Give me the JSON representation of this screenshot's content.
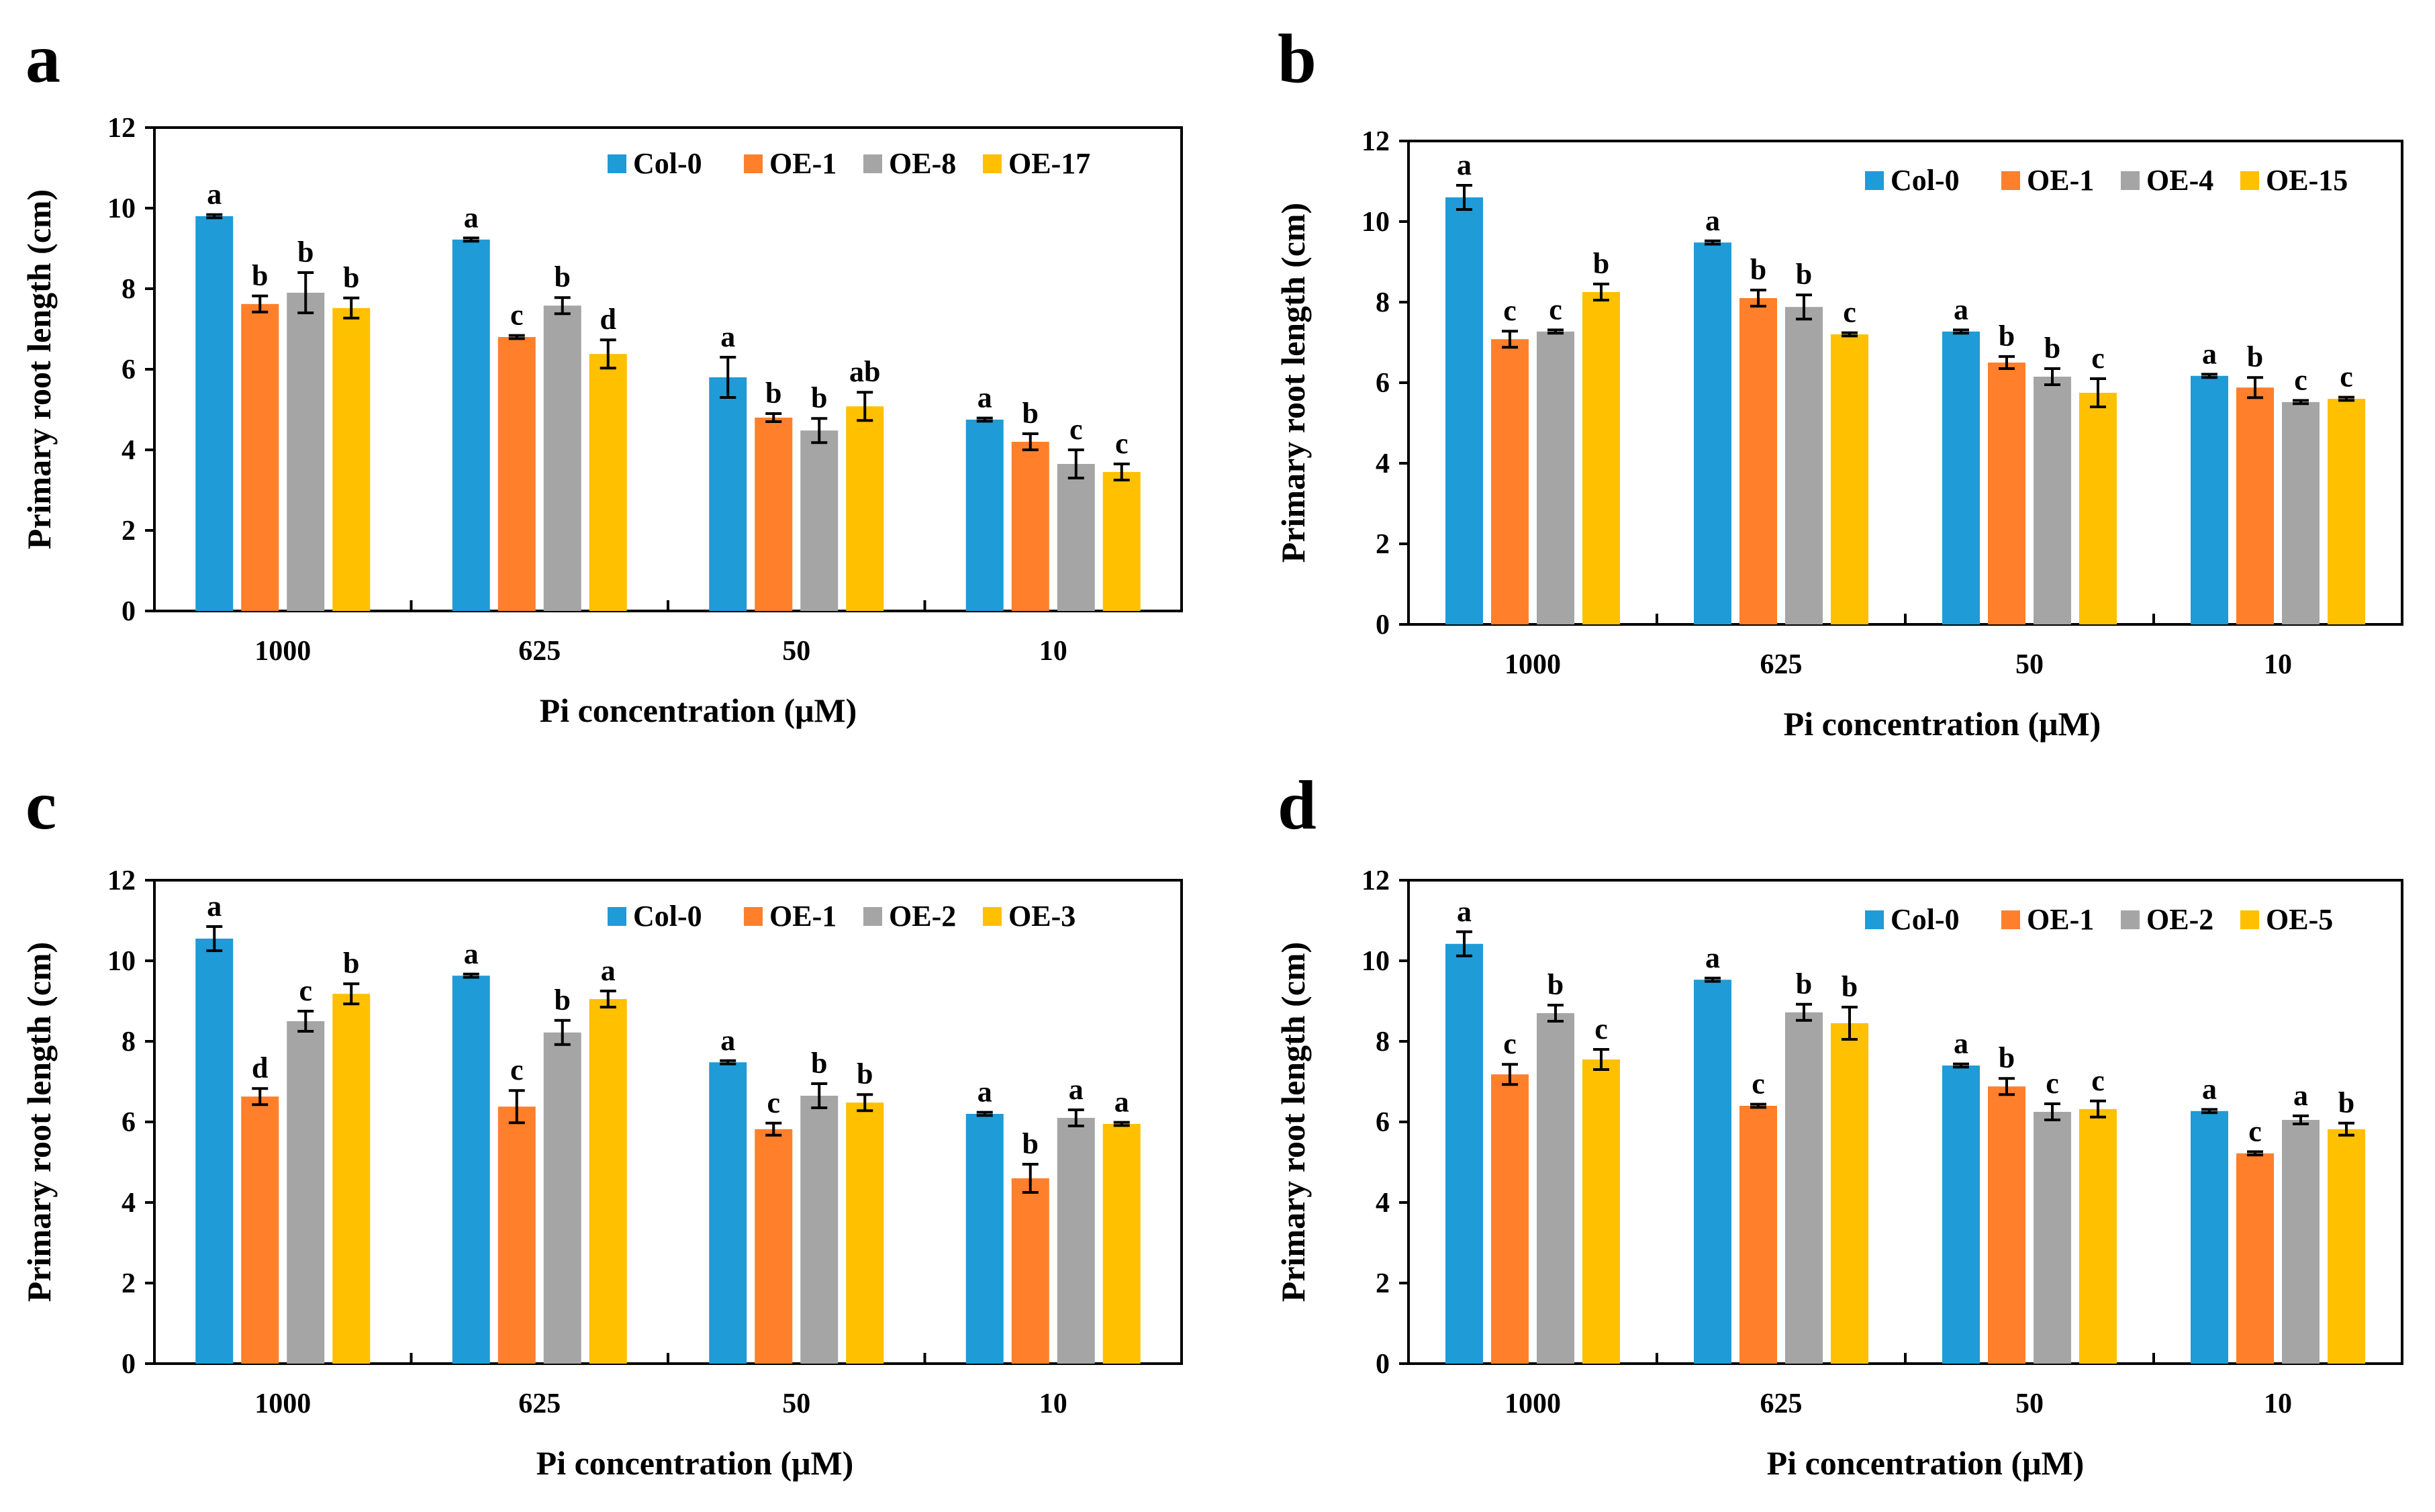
{
  "colors": {
    "series": [
      "#1f9bd7",
      "#ff7f2a",
      "#a5a5a5",
      "#ffc000"
    ],
    "axis": "#000000"
  },
  "chart_data": [
    {
      "panel_label": "a",
      "type": "bar",
      "title": "",
      "xlabel": "Pi concentration (μM)",
      "ylabel": "Primary root length (cm)",
      "ylim": [
        0,
        12
      ],
      "yticks": [
        "0",
        "2",
        "4",
        "6",
        "8",
        "10",
        "12"
      ],
      "categories": [
        "1000",
        "625",
        "50",
        "10"
      ],
      "legend_position": "top-right",
      "series": [
        {
          "name": "Col-0",
          "values": [
            9.8,
            9.22,
            5.8,
            4.75
          ],
          "errors": [
            0.04,
            0.04,
            0.5,
            0.04
          ],
          "letters": [
            "a",
            "a",
            "a",
            "a"
          ]
        },
        {
          "name": "OE-1",
          "values": [
            7.62,
            6.8,
            4.8,
            4.2
          ],
          "errors": [
            0.2,
            0.04,
            0.1,
            0.2
          ],
          "letters": [
            "b",
            "c",
            "b",
            "b"
          ]
        },
        {
          "name": "OE-8",
          "values": [
            7.9,
            7.58,
            4.48,
            3.65
          ],
          "errors": [
            0.5,
            0.2,
            0.3,
            0.35
          ],
          "letters": [
            "b",
            "b",
            "b",
            "c"
          ]
        },
        {
          "name": "OE-17",
          "values": [
            7.52,
            6.38,
            5.08,
            3.45
          ],
          "errors": [
            0.25,
            0.35,
            0.35,
            0.2
          ],
          "letters": [
            "b",
            "d",
            "ab",
            "c"
          ]
        }
      ]
    },
    {
      "panel_label": "b",
      "type": "bar",
      "title": "",
      "xlabel": "Pi concentration (μM)",
      "ylabel": "Primary root length (cm)",
      "ylim": [
        0,
        12
      ],
      "yticks": [
        "0",
        "2",
        "4",
        "6",
        "8",
        "10",
        "12"
      ],
      "categories": [
        "1000",
        "625",
        "50",
        "10"
      ],
      "legend_position": "top-right",
      "series": [
        {
          "name": "Col-0",
          "values": [
            10.6,
            9.48,
            7.27,
            6.17
          ],
          "errors": [
            0.3,
            0.04,
            0.04,
            0.04
          ],
          "letters": [
            "a",
            "a",
            "a",
            "a"
          ]
        },
        {
          "name": "OE-1",
          "values": [
            7.08,
            8.1,
            6.5,
            5.88
          ],
          "errors": [
            0.2,
            0.2,
            0.15,
            0.25
          ],
          "letters": [
            "c",
            "b",
            "b",
            "b"
          ]
        },
        {
          "name": "OE-4",
          "values": [
            7.27,
            7.88,
            6.15,
            5.52
          ],
          "errors": [
            0.04,
            0.3,
            0.2,
            0.04
          ],
          "letters": [
            "c",
            "b",
            "b",
            "c"
          ]
        },
        {
          "name": "OE-15",
          "values": [
            8.25,
            7.2,
            5.75,
            5.6
          ],
          "errors": [
            0.2,
            0.04,
            0.35,
            0.04
          ],
          "letters": [
            "b",
            "c",
            "c",
            "c"
          ]
        }
      ]
    },
    {
      "panel_label": "c",
      "type": "bar",
      "title": "",
      "xlabel": "Pi concentration (μM)",
      "ylabel": "Primary root length (cm)",
      "ylim": [
        0,
        12
      ],
      "yticks": [
        "0",
        "2",
        "4",
        "6",
        "8",
        "10",
        "12"
      ],
      "categories": [
        "1000",
        "625",
        "50",
        "10"
      ],
      "legend_position": "top-right",
      "series": [
        {
          "name": "Col-0",
          "values": [
            10.55,
            9.63,
            7.48,
            6.2
          ],
          "errors": [
            0.3,
            0.04,
            0.04,
            0.04
          ],
          "letters": [
            "a",
            "a",
            "a",
            "a"
          ]
        },
        {
          "name": "OE-1",
          "values": [
            6.63,
            6.38,
            5.82,
            4.6
          ],
          "errors": [
            0.2,
            0.4,
            0.15,
            0.35
          ],
          "letters": [
            "d",
            "c",
            "c",
            "b"
          ]
        },
        {
          "name": "OE-2",
          "values": [
            8.5,
            8.22,
            6.65,
            6.1
          ],
          "errors": [
            0.25,
            0.3,
            0.3,
            0.2
          ],
          "letters": [
            "c",
            "b",
            "b",
            "a"
          ]
        },
        {
          "name": "OE-3",
          "values": [
            9.18,
            9.05,
            6.48,
            5.95
          ],
          "errors": [
            0.25,
            0.2,
            0.2,
            0.04
          ],
          "letters": [
            "b",
            "a",
            "b",
            "a"
          ]
        }
      ]
    },
    {
      "panel_label": "d",
      "type": "bar",
      "title": "",
      "xlabel": "Pi concentration (μM)",
      "ylabel": "Primary root length (cm)",
      "ylim": [
        0,
        12
      ],
      "yticks": [
        "0",
        "2",
        "4",
        "6",
        "8",
        "10",
        "12"
      ],
      "categories": [
        "1000",
        "625",
        "50",
        "10"
      ],
      "legend_position": "top-right",
      "series": [
        {
          "name": "Col-0",
          "values": [
            10.42,
            9.53,
            7.4,
            6.27
          ],
          "errors": [
            0.3,
            0.04,
            0.04,
            0.04
          ],
          "letters": [
            "a",
            "a",
            "a",
            "a"
          ]
        },
        {
          "name": "OE-1",
          "values": [
            7.18,
            6.4,
            6.88,
            5.22
          ],
          "errors": [
            0.25,
            0.04,
            0.2,
            0.04
          ],
          "letters": [
            "c",
            "c",
            "b",
            "c"
          ]
        },
        {
          "name": "OE-2",
          "values": [
            8.7,
            8.72,
            6.25,
            6.05
          ],
          "errors": [
            0.2,
            0.2,
            0.2,
            0.1
          ],
          "letters": [
            "b",
            "b",
            "c",
            "a"
          ]
        },
        {
          "name": "OE-5",
          "values": [
            7.55,
            8.45,
            6.32,
            5.82
          ],
          "errors": [
            0.25,
            0.4,
            0.2,
            0.15
          ],
          "letters": [
            "c",
            "b",
            "c",
            "b"
          ]
        }
      ]
    }
  ]
}
